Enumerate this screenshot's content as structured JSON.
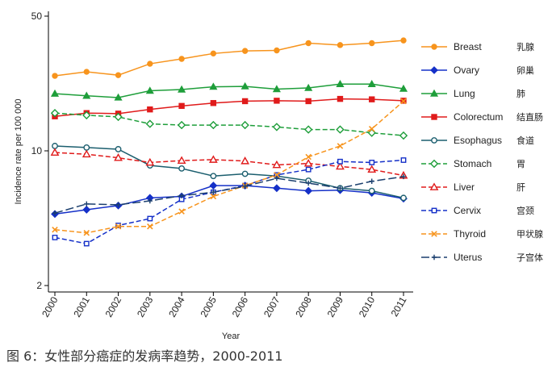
{
  "caption": "图 6：女性部分癌症的发病率趋势，2000-2011",
  "chart_data": {
    "type": "line",
    "xlabel": "Year",
    "ylabel": "Incidence rate per 100 000",
    "yscale": "log",
    "ylim": [
      2,
      55
    ],
    "yticks": [
      2,
      10,
      50
    ],
    "x": [
      2000,
      2001,
      2002,
      2003,
      2004,
      2005,
      2006,
      2007,
      2008,
      2009,
      2010,
      2011
    ],
    "legend_position": "right",
    "series": [
      {
        "name": "Breast",
        "name_cn": "乳腺",
        "color": "#F7941D",
        "marker": "circle",
        "dash": "solid",
        "values": [
          24.5,
          25.7,
          24.7,
          28.3,
          30.0,
          32.0,
          33.0,
          33.2,
          36.2,
          35.4,
          36.2,
          37.4
        ]
      },
      {
        "name": "Ovary",
        "name_cn": "卵巢",
        "color": "#1530C8",
        "marker": "diamond",
        "dash": "solid",
        "values": [
          4.7,
          4.95,
          5.2,
          5.7,
          5.8,
          6.6,
          6.6,
          6.4,
          6.2,
          6.25,
          6.05,
          5.65
        ]
      },
      {
        "name": "Lung",
        "name_cn": "肺",
        "color": "#1E9E3A",
        "marker": "triangle",
        "dash": "solid",
        "values": [
          19.8,
          19.3,
          18.9,
          20.5,
          20.8,
          21.5,
          21.6,
          20.9,
          21.2,
          22.2,
          22.2,
          21.0
        ]
      },
      {
        "name": "Colorectum",
        "name_cn": "结直肠",
        "color": "#E01B1B",
        "marker": "square",
        "dash": "solid",
        "values": [
          15.1,
          15.7,
          15.6,
          16.4,
          17.1,
          17.7,
          18.1,
          18.2,
          18.1,
          18.6,
          18.5,
          18.2
        ]
      },
      {
        "name": "Esophagus",
        "name_cn": "食道",
        "color": "#1B5E6E",
        "marker": "circle-open",
        "dash": "solid",
        "values": [
          10.6,
          10.4,
          10.2,
          8.4,
          8.1,
          7.4,
          7.6,
          7.4,
          7.0,
          6.4,
          6.2,
          5.7
        ]
      },
      {
        "name": "Stomach",
        "name_cn": "胃",
        "color": "#1E9E3A",
        "marker": "diamond-open",
        "dash": "dashed",
        "values": [
          15.7,
          15.3,
          15.0,
          13.8,
          13.6,
          13.6,
          13.6,
          13.3,
          12.9,
          12.9,
          12.4,
          12.0
        ]
      },
      {
        "name": "Liver",
        "name_cn": "肝",
        "color": "#E01B1B",
        "marker": "triangle-open",
        "dash": "dashed",
        "values": [
          9.8,
          9.6,
          9.2,
          8.7,
          8.9,
          9.0,
          8.85,
          8.45,
          8.6,
          8.3,
          8.0,
          7.45
        ]
      },
      {
        "name": "Cervix",
        "name_cn": "宫颈",
        "color": "#1530C8",
        "marker": "square-open",
        "dash": "dashed",
        "values": [
          3.55,
          3.3,
          4.1,
          4.45,
          5.6,
          6.1,
          6.6,
          7.5,
          8.0,
          8.8,
          8.7,
          8.95
        ]
      },
      {
        "name": "Thyroid",
        "name_cn": "甲状腺",
        "color": "#F7941D",
        "marker": "x",
        "dash": "dashed",
        "values": [
          3.9,
          3.75,
          4.05,
          4.05,
          4.85,
          5.8,
          6.6,
          7.5,
          9.3,
          10.6,
          13.0,
          18.1
        ]
      },
      {
        "name": "Uterus",
        "name_cn": "子宫体",
        "color": "#1B3F6E",
        "marker": "plus",
        "dash": "longdash",
        "values": [
          4.75,
          5.3,
          5.25,
          5.5,
          5.85,
          6.1,
          6.55,
          7.2,
          6.8,
          6.4,
          6.95,
          7.35
        ]
      }
    ]
  }
}
